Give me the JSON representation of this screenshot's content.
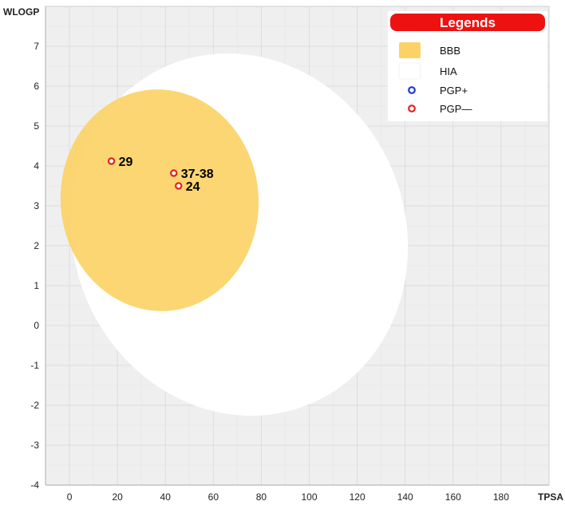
{
  "chart_data": {
    "type": "scatter",
    "xlabel": "TPSA",
    "ylabel": "WLOGP",
    "xlim": [
      -10,
      200
    ],
    "ylim": [
      -4,
      8
    ],
    "x_ticks": [
      0,
      20,
      40,
      60,
      80,
      100,
      120,
      140,
      160,
      180
    ],
    "y_ticks": [
      -4,
      -3,
      -2,
      -1,
      0,
      1,
      2,
      3,
      4,
      5,
      6,
      7
    ],
    "grid": true,
    "regions": [
      {
        "name": "HIA",
        "color": "#ffffff"
      },
      {
        "name": "BBB",
        "color": "#fcd266"
      }
    ],
    "points": [
      {
        "label": "29",
        "x": 17.5,
        "y": 4.12,
        "class": "PGP—"
      },
      {
        "label": "37-38",
        "x": 43.5,
        "y": 3.82,
        "class": "PGP—"
      },
      {
        "label": "24",
        "x": 45.5,
        "y": 3.5,
        "class": "PGP—"
      }
    ],
    "legend": {
      "title": "Legends",
      "placement": "top-right",
      "items": [
        {
          "label": "BBB",
          "kind": "area",
          "color": "#fcd266"
        },
        {
          "label": "HIA",
          "kind": "area",
          "color": "#ffffff"
        },
        {
          "label": "PGP+",
          "kind": "point",
          "color": "#1a3bd6"
        },
        {
          "label": "PGP—",
          "kind": "point",
          "color": "#e0241c"
        }
      ]
    },
    "colors": {
      "plot_background": "#efefef",
      "bbb": "#fcd266",
      "hia": "#ffffff",
      "pgp_plus": "#1a3bd6",
      "pgp_minus": "#e0241c",
      "legend_header": "#ee1111"
    }
  }
}
